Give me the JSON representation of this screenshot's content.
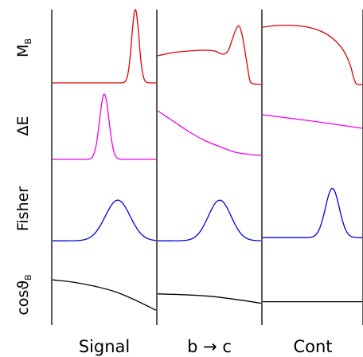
{
  "chart_data": {
    "type": "line",
    "columns": [
      "Signal",
      "b → c",
      "Cont"
    ],
    "rows": [
      {
        "main": "M",
        "sub": "B",
        "color": "#e00000"
      },
      {
        "main": "ΔE",
        "sub": "",
        "color": "#ee00ee"
      },
      {
        "main": "Fisher",
        "sub": "",
        "color": "#0000dd"
      },
      {
        "main": "cosϑ",
        "sub": "B",
        "color": "#000000"
      }
    ],
    "curves": [
      [
        {
          "shape": "gauss",
          "base": 0.08,
          "peak": 0.92,
          "center": 0.8,
          "width": 0.035
        },
        {
          "shape": "poly",
          "points": [
            [
              0,
              0.42
            ],
            [
              0.15,
              0.46
            ],
            [
              0.3,
              0.48
            ],
            [
              0.45,
              0.49
            ],
            [
              0.55,
              0.48
            ],
            [
              0.63,
              0.44
            ],
            [
              0.68,
              0.48
            ],
            [
              0.72,
              0.62
            ],
            [
              0.76,
              0.76
            ],
            [
              0.79,
              0.79
            ],
            [
              0.82,
              0.66
            ],
            [
              0.86,
              0.35
            ],
            [
              0.89,
              0.12
            ],
            [
              0.92,
              0.07
            ],
            [
              1,
              0.06
            ]
          ]
        },
        {
          "shape": "poly",
          "points": [
            [
              0,
              0.78
            ],
            [
              0.15,
              0.8
            ],
            [
              0.3,
              0.8
            ],
            [
              0.45,
              0.78
            ],
            [
              0.6,
              0.72
            ],
            [
              0.72,
              0.62
            ],
            [
              0.82,
              0.47
            ],
            [
              0.88,
              0.3
            ],
            [
              0.92,
              0.12
            ],
            [
              0.95,
              0.06
            ],
            [
              1,
              0.06
            ]
          ]
        }
      ],
      [
        {
          "shape": "gauss",
          "base": 0.12,
          "peak": 0.82,
          "center": 0.5,
          "width": 0.045
        },
        {
          "shape": "poly",
          "points": [
            [
              0,
              0.73
            ],
            [
              0.15,
              0.6
            ],
            [
              0.3,
              0.47
            ],
            [
              0.45,
              0.36
            ],
            [
              0.6,
              0.28
            ],
            [
              0.75,
              0.21
            ],
            [
              0.9,
              0.18
            ],
            [
              1,
              0.17
            ]
          ]
        },
        {
          "shape": "poly",
          "points": [
            [
              0,
              0.68
            ],
            [
              0.5,
              0.6
            ],
            [
              1,
              0.51
            ]
          ]
        }
      ],
      [
        {
          "shape": "gauss",
          "base": 0.08,
          "peak": 0.52,
          "center": 0.63,
          "width": 0.12
        },
        {
          "shape": "gauss",
          "base": 0.08,
          "peak": 0.52,
          "center": 0.6,
          "width": 0.11
        },
        {
          "shape": "gauss",
          "base": 0.12,
          "peak": 0.63,
          "center": 0.7,
          "width": 0.07
        }
      ],
      [
        {
          "shape": "poly",
          "points": [
            [
              0,
              0.58
            ],
            [
              0.2,
              0.55
            ],
            [
              0.4,
              0.5
            ],
            [
              0.6,
              0.43
            ],
            [
              0.8,
              0.32
            ],
            [
              1,
              0.19
            ]
          ]
        },
        {
          "shape": "poly",
          "points": [
            [
              0,
              0.4
            ],
            [
              0.25,
              0.39
            ],
            [
              0.5,
              0.37
            ],
            [
              0.75,
              0.33
            ],
            [
              1,
              0.28
            ]
          ]
        },
        {
          "shape": "poly",
          "points": [
            [
              0,
              0.3
            ],
            [
              1,
              0.3
            ]
          ]
        }
      ]
    ]
  }
}
